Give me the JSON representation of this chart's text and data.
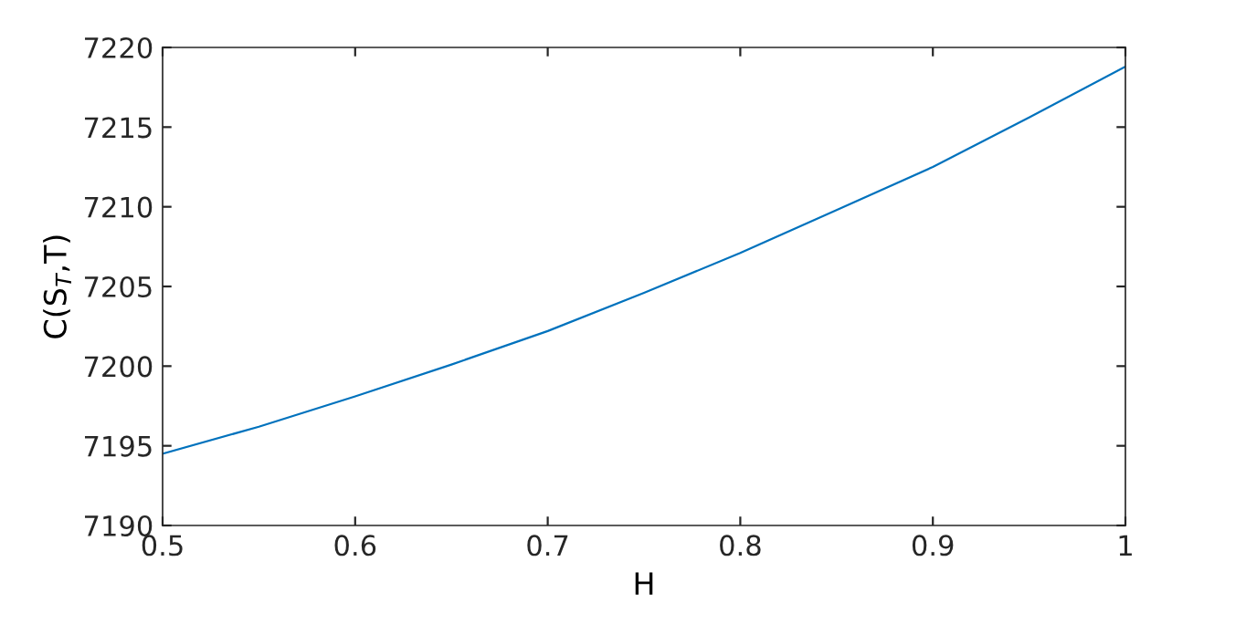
{
  "chart_data": {
    "type": "line",
    "xlabel": "H",
    "ylabel": "C(S$_{T}$,T)",
    "x": [
      0.5,
      0.55,
      0.6,
      0.65,
      0.7,
      0.75,
      0.8,
      0.85,
      0.9,
      0.95,
      1.0
    ],
    "series": [
      {
        "color": "#0072bd",
        "values": [
          7194.5,
          7196.2,
          7198.1,
          7200.1,
          7202.2,
          7204.6,
          7207.1,
          7209.8,
          7212.5,
          7215.6,
          7218.8
        ]
      }
    ],
    "xlim": [
      0.5,
      1
    ],
    "xticks": [
      0.5,
      0.6,
      0.7,
      0.8,
      0.9,
      1
    ],
    "ylim": [
      7190,
      7220
    ],
    "yticks": [
      7190,
      7195,
      7200,
      7205,
      7210,
      7215,
      7220
    ],
    "grid": false,
    "legend": false,
    "marker": "none",
    "line_style": "solid"
  }
}
